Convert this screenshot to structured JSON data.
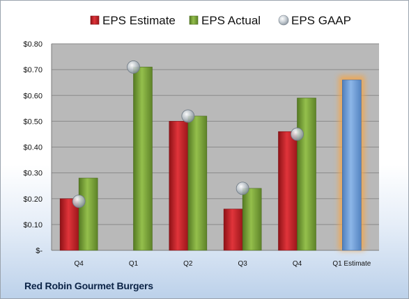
{
  "footer": {
    "company": "Red Robin Gourmet Burgers"
  },
  "colors": {
    "estimate": "#c8242b",
    "actual": "#7fa63a",
    "gaap": "#a9b3bd",
    "forecast": "#6d9cd6",
    "forecast_glow": "#f4a64a",
    "plot_bg": "#b9b9b9"
  },
  "chart_data": {
    "type": "bar",
    "categories": [
      "Q4",
      "Q1",
      "Q2",
      "Q3",
      "Q4",
      "Q1 Estimate"
    ],
    "series": [
      {
        "name": "EPS Estimate",
        "values": [
          0.2,
          null,
          0.5,
          0.16,
          0.46,
          null
        ]
      },
      {
        "name": "EPS Actual",
        "values": [
          0.28,
          0.71,
          0.52,
          0.24,
          0.59,
          0.66
        ]
      },
      {
        "name": "EPS GAAP",
        "values": [
          0.19,
          0.71,
          0.52,
          0.24,
          0.45,
          null
        ]
      }
    ],
    "ylim": [
      0,
      0.8
    ],
    "yticks": [
      {
        "value": 0.0,
        "label": "$-"
      },
      {
        "value": 0.1,
        "label": "$0.10"
      },
      {
        "value": 0.2,
        "label": "$0.20"
      },
      {
        "value": 0.3,
        "label": "$0.30"
      },
      {
        "value": 0.4,
        "label": "$0.40"
      },
      {
        "value": 0.5,
        "label": "$0.50"
      },
      {
        "value": 0.6,
        "label": "$0.60"
      },
      {
        "value": 0.7,
        "label": "$0.70"
      },
      {
        "value": 0.8,
        "label": "$0.80"
      }
    ],
    "grid": true,
    "legend": "top",
    "title": "",
    "xlabel": "",
    "ylabel": ""
  }
}
